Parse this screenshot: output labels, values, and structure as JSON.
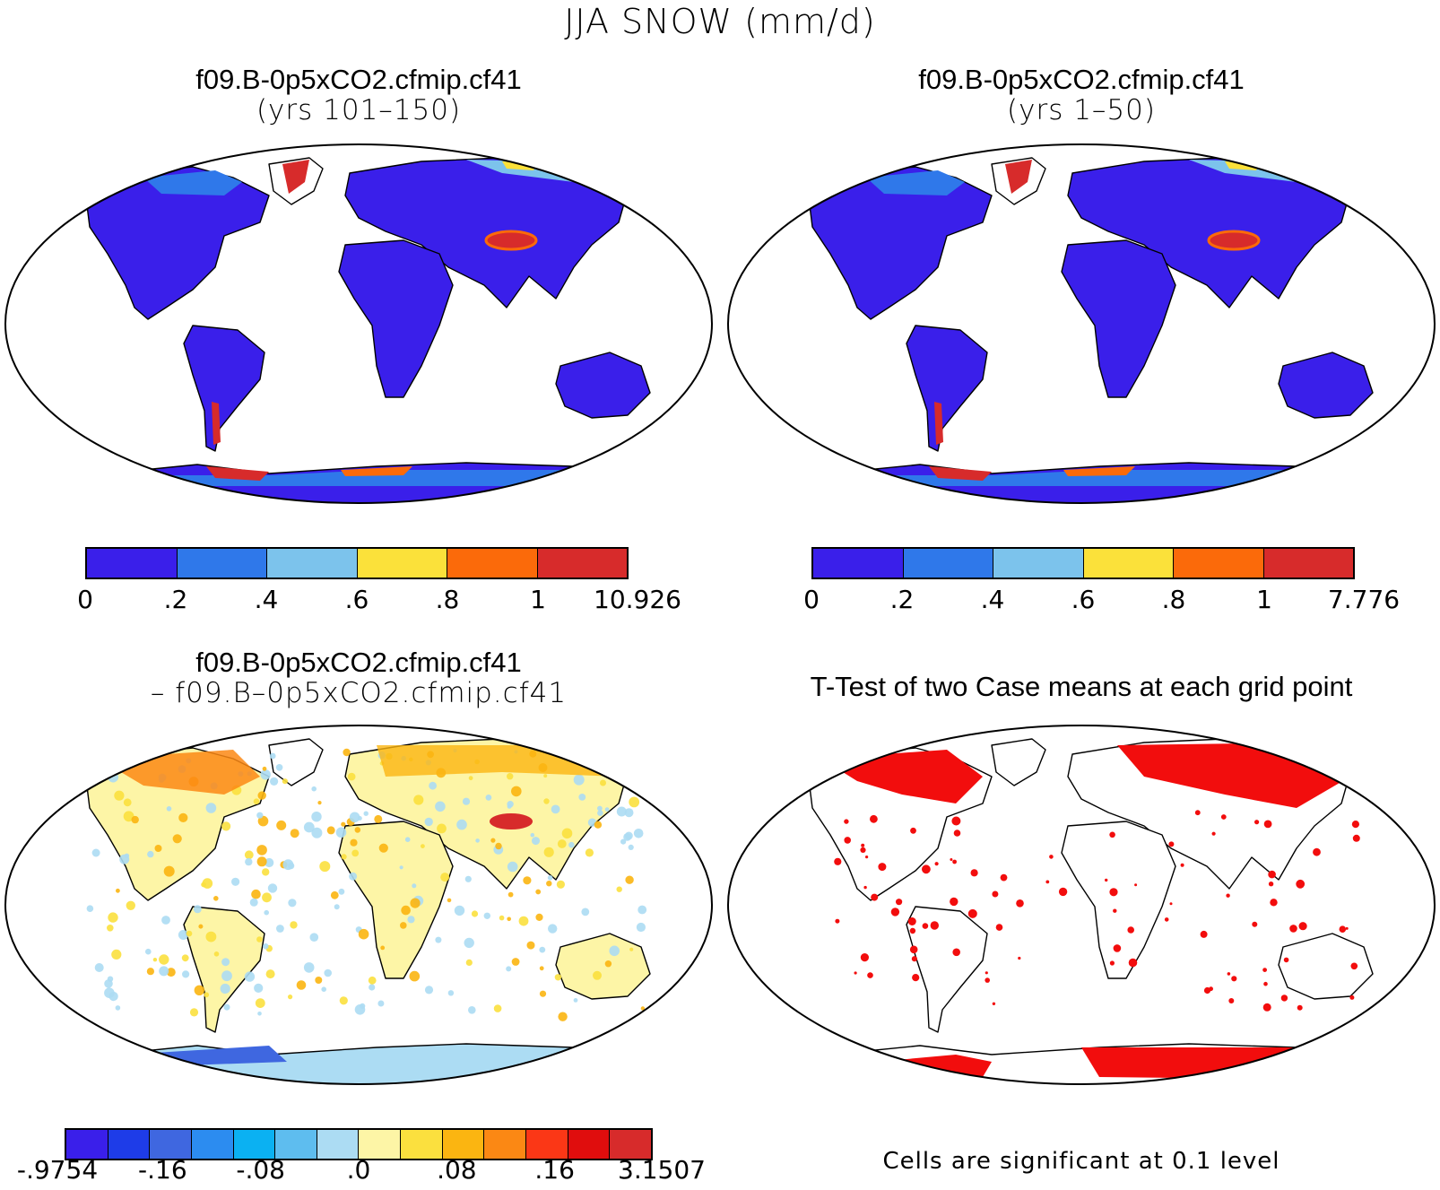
{
  "figure": {
    "title": "JJA SNOW (mm/d)"
  },
  "panels": [
    {
      "id": "case1",
      "title_line1": "f09.B-0p5xCO2.cfmip.cf41",
      "title_line2": "(yrs 101–150)",
      "colorbar": {
        "colors": [
          "#3a1fea",
          "#2f78ea",
          "#7cc3ec",
          "#fbe13a",
          "#fb6a0a",
          "#d72b2b"
        ],
        "labels": [
          "0",
          ".2",
          ".4",
          ".6",
          ".8",
          "1",
          "10.926"
        ]
      }
    },
    {
      "id": "case2",
      "title_line1": "f09.B-0p5xCO2.cfmip.cf41",
      "title_line2": "(yrs 1–50)",
      "colorbar": {
        "colors": [
          "#3a1fea",
          "#2f78ea",
          "#7cc3ec",
          "#fbe13a",
          "#fb6a0a",
          "#d72b2b"
        ],
        "labels": [
          "0",
          ".2",
          ".4",
          ".6",
          ".8",
          "1",
          "7.776"
        ]
      }
    },
    {
      "id": "diff",
      "title_line1": "f09.B-0p5xCO2.cfmip.cf41",
      "title_line2": "– f09.B–0p5xCO2.cfmip.cf41",
      "colorbar": {
        "colors": [
          "#3a1fea",
          "#1e3ce8",
          "#3f67e0",
          "#2c8cf0",
          "#0bb1f2",
          "#5ebdef",
          "#acdcf3",
          "#fdf5a6",
          "#fbe03e",
          "#fbb511",
          "#fb8814",
          "#fb3716",
          "#e00d0d",
          "#d72b2b"
        ],
        "labels": [
          "-.9754",
          "-.16",
          "-.08",
          ".0",
          ".08",
          ".16",
          "3.1507"
        ]
      }
    },
    {
      "id": "ttest",
      "title_line1": "T-Test of two Case means at each grid point",
      "note": "Cells are significant at 0.1 level"
    }
  ]
}
